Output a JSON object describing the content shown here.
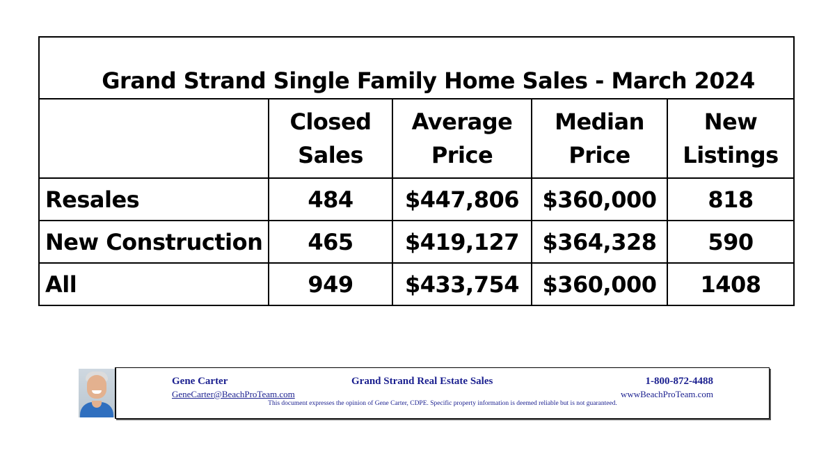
{
  "table": {
    "title": "Grand Strand Single Family Home Sales - March 2024",
    "headers": [
      {
        "line1": "",
        "line2": ""
      },
      {
        "line1": "Closed",
        "line2": "Sales"
      },
      {
        "line1": "Average",
        "line2": "Price"
      },
      {
        "line1": "Median",
        "line2": "Price"
      },
      {
        "line1": "New",
        "line2": "Listings"
      }
    ],
    "rows": [
      {
        "label": "Resales",
        "closed": "484",
        "average": "$447,806",
        "median": "$360,000",
        "listings": "818"
      },
      {
        "label": "New Construction",
        "closed": "465",
        "average": "$419,127",
        "median": "$364,328",
        "listings": "590"
      },
      {
        "label": "All",
        "closed": "949",
        "average": "$433,754",
        "median": "$360,000",
        "listings": "1408"
      }
    ]
  },
  "footer": {
    "agent_name": "Gene Carter",
    "company": "Grand Strand Real Estate Sales",
    "phone": "1-800-872-4488",
    "email": "GeneCarter@BeachProTeam.com",
    "website": "wwwBeachProTeam.com",
    "disclaimer": "This document expresses the opinion of Gene Carter, CDPE.  Specific property information is deemed reliable but is not guaranteed."
  },
  "colors": {
    "footer_text": "#1a1f8f",
    "border": "#000000"
  }
}
